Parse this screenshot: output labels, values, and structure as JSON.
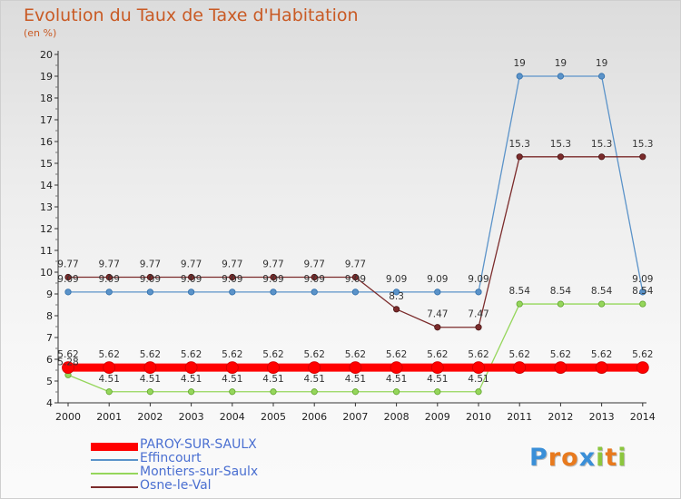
{
  "header": {
    "title": "Evolution du Taux de Taxe d'Habitation",
    "subtitle": "(en %)"
  },
  "logo": {
    "text": "Proxiti",
    "letters": [
      {
        "ch": "P",
        "color": "#3a8fd8"
      },
      {
        "ch": "r",
        "color": "#e87a1e"
      },
      {
        "ch": "o",
        "color": "#e87a1e"
      },
      {
        "ch": "x",
        "color": "#3a8fd8"
      },
      {
        "ch": "i",
        "color": "#8cc63e"
      },
      {
        "ch": "t",
        "color": "#e87a1e"
      },
      {
        "ch": "i",
        "color": "#8cc63e"
      }
    ]
  },
  "chart_data": {
    "type": "line",
    "title": "Evolution du Taux de Taxe d'Habitation",
    "ylabel": "(en %)",
    "xlabel": "",
    "x": [
      "2000",
      "2001",
      "2002",
      "2003",
      "2004",
      "2005",
      "2006",
      "2007",
      "2008",
      "2009",
      "2010",
      "2011",
      "2012",
      "2013",
      "2014"
    ],
    "ylim": [
      4,
      20
    ],
    "yticks": [
      4,
      5,
      6,
      7,
      8,
      9,
      10,
      11,
      12,
      13,
      14,
      15,
      16,
      17,
      18,
      19,
      20
    ],
    "grid": false,
    "legend_position": "bottom-left",
    "series": [
      {
        "name": "PAROY-SUR-SAULX",
        "color": "#ff0000",
        "values": [
          5.62,
          5.62,
          5.62,
          5.62,
          5.62,
          5.62,
          5.62,
          5.62,
          5.62,
          5.62,
          5.62,
          5.62,
          5.62,
          5.62,
          5.62
        ],
        "labels": [
          "5.62",
          "5.62",
          "5.62",
          "5.62",
          "5.62",
          "5.62",
          "5.62",
          "5.62",
          "5.62",
          "5.62",
          "5.62",
          "5.62",
          "5.62",
          "5.62",
          "5.62"
        ]
      },
      {
        "name": "Effincourt",
        "color": "#5b93c9",
        "values": [
          9.09,
          9.09,
          9.09,
          9.09,
          9.09,
          9.09,
          9.09,
          9.09,
          9.09,
          9.09,
          9.09,
          19,
          19,
          19,
          9.09
        ],
        "labels": [
          "9.09",
          "9.09",
          "9.09",
          "9.09",
          "9.09",
          "9.09",
          "9.09",
          "9.09",
          "9.09",
          "9.09",
          "9.09",
          "19",
          "19",
          "19",
          "9.09"
        ]
      },
      {
        "name": "Montiers-sur-Saulx",
        "color": "#95d65b",
        "values": [
          5.28,
          4.51,
          4.51,
          4.51,
          4.51,
          4.51,
          4.51,
          4.51,
          4.51,
          4.51,
          4.51,
          8.54,
          8.54,
          8.54,
          8.54
        ],
        "labels": [
          "5.28",
          "4.51",
          "4.51",
          "4.51",
          "4.51",
          "4.51",
          "4.51",
          "4.51",
          "4.51",
          "4.51",
          "4.51",
          "8.54",
          "8.54",
          "8.54",
          "8.54"
        ]
      },
      {
        "name": "Osne-le-Val",
        "color": "#7b2b2b",
        "values": [
          9.77,
          9.77,
          9.77,
          9.77,
          9.77,
          9.77,
          9.77,
          9.77,
          8.3,
          7.47,
          7.47,
          15.3,
          15.3,
          15.3,
          15.3
        ],
        "labels": [
          "9.77",
          "9.77",
          "9.77",
          "9.77",
          "9.77",
          "9.77",
          "9.77",
          "9.77",
          "8.3",
          "7.47",
          "7.47",
          "15.3",
          "15.3",
          "15.3",
          "15.3"
        ]
      }
    ]
  }
}
